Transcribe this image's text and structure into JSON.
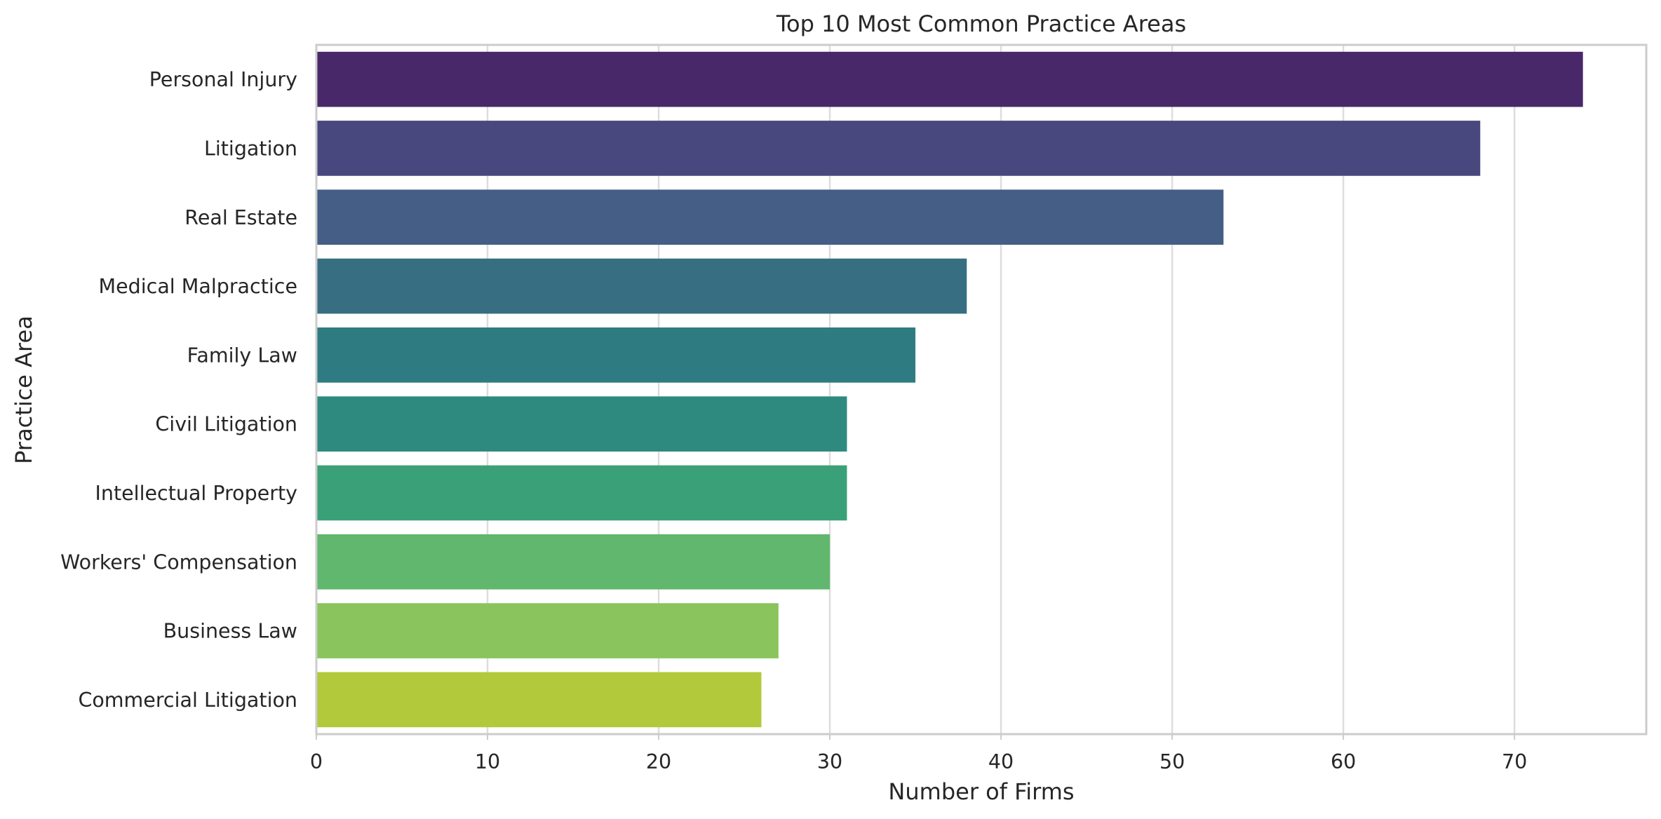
{
  "chart_data": {
    "type": "bar",
    "orientation": "horizontal",
    "title": "Top 10 Most Common Practice Areas",
    "xlabel": "Number of Firms",
    "ylabel": "Practice Area",
    "categories": [
      "Personal Injury",
      "Litigation",
      "Real Estate",
      "Medical Malpractice",
      "Family Law",
      "Civil Litigation",
      "Intellectual Property",
      "Workers' Compensation",
      "Business Law",
      "Commercial Litigation"
    ],
    "values": [
      74,
      68,
      53,
      38,
      35,
      31,
      31,
      30,
      27,
      26
    ],
    "colors": [
      "#482868",
      "#48487e",
      "#445e86",
      "#376e82",
      "#2e7c81",
      "#2e8a7e",
      "#3aa078",
      "#60b76d",
      "#8ac45c",
      "#b1c93a"
    ],
    "xlim": [
      0,
      77.7
    ],
    "xticks": [
      0,
      10,
      20,
      30,
      40,
      50,
      60,
      70
    ],
    "grid": "vertical",
    "legend": "none"
  }
}
